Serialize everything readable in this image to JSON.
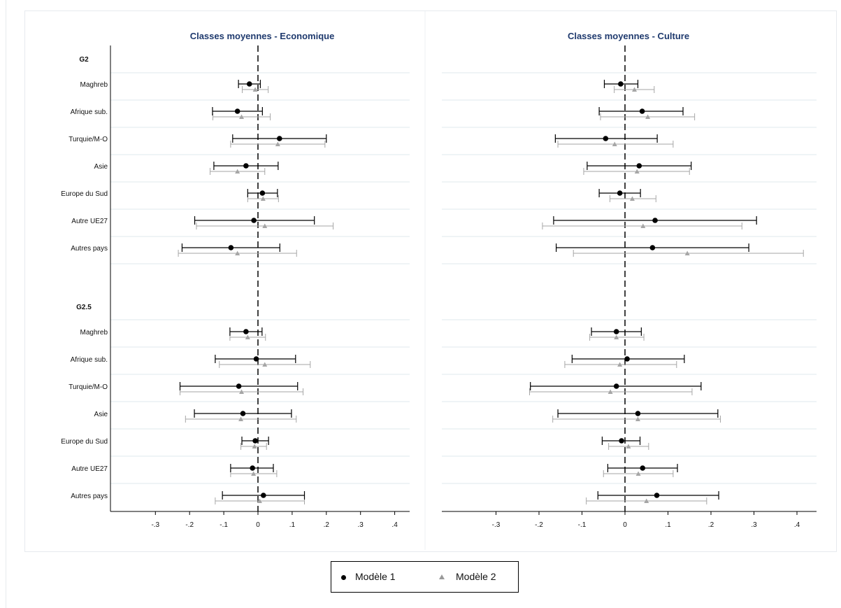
{
  "legend": {
    "model1": "Modèle 1",
    "model2": "Modèle 2"
  },
  "colors": {
    "model1": "#000000",
    "model2": "#a6a6a6",
    "title": "#1f3a6e",
    "grid": "#dfe8ee"
  },
  "chart_data": [
    {
      "type": "scatter",
      "title": "Classes moyennes - Economique",
      "xlim": [
        -0.4,
        0.45
      ],
      "xticks": [
        -0.3,
        -0.2,
        -0.1,
        0,
        0.1,
        0.2,
        0.3,
        0.4
      ],
      "xtick_labels": [
        "-.3",
        "-.2",
        "-.1",
        "0",
        ".1",
        ".2",
        ".3",
        ".4"
      ],
      "groups": [
        {
          "name": "G2",
          "rows": [
            {
              "label": "Maghreb",
              "m1": [
                -0.025,
                -0.057,
                0.007
              ],
              "m2": [
                -0.008,
                -0.046,
                0.03
              ]
            },
            {
              "label": "Afrique sub.",
              "m1": [
                -0.06,
                -0.133,
                0.013
              ],
              "m2": [
                -0.048,
                -0.132,
                0.036
              ]
            },
            {
              "label": "Turquie/M-O",
              "m1": [
                0.063,
                -0.074,
                0.2
              ],
              "m2": [
                0.058,
                -0.08,
                0.196
              ]
            },
            {
              "label": "Asie",
              "m1": [
                -0.035,
                -0.129,
                0.059
              ],
              "m2": [
                -0.06,
                -0.14,
                0.02
              ]
            },
            {
              "label": "Europe du Sud",
              "m1": [
                0.013,
                -0.03,
                0.057
              ],
              "m2": [
                0.015,
                -0.03,
                0.06
              ]
            },
            {
              "label": "Autre UE27",
              "m1": [
                -0.012,
                -0.185,
                0.165
              ],
              "m2": [
                0.02,
                -0.18,
                0.22
              ]
            },
            {
              "label": "Autres pays",
              "m1": [
                -0.079,
                -0.222,
                0.064
              ],
              "m2": [
                -0.06,
                -0.233,
                0.113
              ]
            }
          ]
        },
        {
          "name": "G2.5",
          "rows": [
            {
              "label": "Maghreb",
              "m1": [
                -0.035,
                -0.082,
                0.012
              ],
              "m2": [
                -0.03,
                -0.082,
                0.022
              ]
            },
            {
              "label": "Afrique sub.",
              "m1": [
                -0.005,
                -0.125,
                0.11
              ],
              "m2": [
                0.02,
                -0.113,
                0.153
              ]
            },
            {
              "label": "Turquie/M-O",
              "m1": [
                -0.056,
                -0.228,
                0.116
              ],
              "m2": [
                -0.048,
                -0.228,
                0.132
              ]
            },
            {
              "label": "Asie",
              "m1": [
                -0.044,
                -0.186,
                0.098
              ],
              "m2": [
                -0.05,
                -0.212,
                0.112
              ]
            },
            {
              "label": "Europe du Sud",
              "m1": [
                -0.008,
                -0.047,
                0.031
              ],
              "m2": [
                -0.01,
                -0.05,
                0.025
              ]
            },
            {
              "label": "Autre UE27",
              "m1": [
                -0.016,
                -0.08,
                0.045
              ],
              "m2": [
                -0.013,
                -0.08,
                0.055
              ]
            },
            {
              "label": "Autres pays",
              "m1": [
                0.016,
                -0.104,
                0.136
              ],
              "m2": [
                0.005,
                -0.125,
                0.136
              ]
            }
          ]
        }
      ]
    },
    {
      "type": "scatter",
      "title": "Classes moyennes - Culture",
      "xlim": [
        -0.4,
        0.45
      ],
      "xticks": [
        -0.3,
        -0.2,
        -0.1,
        0,
        0.1,
        0.2,
        0.3,
        0.4
      ],
      "xtick_labels": [
        "-.3",
        "-.2",
        "-.1",
        "0",
        ".1",
        ".2",
        ".3",
        ".4"
      ],
      "groups": [
        {
          "name": "G2",
          "rows": [
            {
              "label": "Maghreb",
              "m1": [
                -0.01,
                -0.048,
                0.03
              ],
              "m2": [
                0.022,
                -0.025,
                0.068
              ]
            },
            {
              "label": "Afrique sub.",
              "m1": [
                0.04,
                -0.06,
                0.135
              ],
              "m2": [
                0.053,
                -0.057,
                0.162
              ]
            },
            {
              "label": "Turquie/M-O",
              "m1": [
                -0.045,
                -0.162,
                0.075
              ],
              "m2": [
                -0.024,
                -0.156,
                0.112
              ]
            },
            {
              "label": "Asie",
              "m1": [
                0.033,
                -0.088,
                0.154
              ],
              "m2": [
                0.028,
                -0.096,
                0.15
              ]
            },
            {
              "label": "Europe du Sud",
              "m1": [
                -0.012,
                -0.06,
                0.036
              ],
              "m2": [
                0.017,
                -0.035,
                0.072
              ]
            },
            {
              "label": "Autre UE27",
              "m1": [
                0.07,
                -0.166,
                0.306
              ],
              "m2": [
                0.042,
                -0.192,
                0.272
              ]
            },
            {
              "label": "Autres pays",
              "m1": [
                0.064,
                -0.16,
                0.288
              ],
              "m2": [
                0.145,
                -0.12,
                0.415
              ]
            }
          ]
        },
        {
          "name": "G2.5",
          "rows": [
            {
              "label": "Maghreb",
              "m1": [
                -0.02,
                -0.078,
                0.038
              ],
              "m2": [
                -0.02,
                -0.082,
                0.044
              ]
            },
            {
              "label": "Afrique sub.",
              "m1": [
                0.005,
                -0.123,
                0.138
              ],
              "m2": [
                -0.012,
                -0.14,
                0.12
              ]
            },
            {
              "label": "Turquie/M-O",
              "m1": [
                -0.02,
                -0.22,
                0.177
              ],
              "m2": [
                -0.034,
                -0.222,
                0.156
              ]
            },
            {
              "label": "Asie",
              "m1": [
                0.03,
                -0.156,
                0.216
              ],
              "m2": [
                0.03,
                -0.168,
                0.222
              ]
            },
            {
              "label": "Europe du Sud",
              "m1": [
                -0.008,
                -0.053,
                0.035
              ],
              "m2": [
                0.008,
                -0.038,
                0.055
              ]
            },
            {
              "label": "Autre UE27",
              "m1": [
                0.041,
                -0.04,
                0.122
              ],
              "m2": [
                0.031,
                -0.05,
                0.112
              ]
            },
            {
              "label": "Autres pays",
              "m1": [
                0.074,
                -0.063,
                0.218
              ],
              "m2": [
                0.05,
                -0.09,
                0.19
              ]
            }
          ]
        }
      ]
    }
  ]
}
